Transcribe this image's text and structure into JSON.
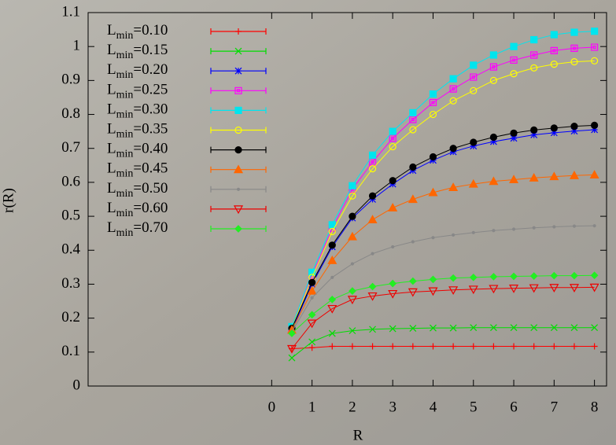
{
  "chart_data": {
    "type": "line",
    "xlabel": "R",
    "ylabel": "r(R)",
    "x": [
      0.5,
      1,
      1.5,
      2,
      2.5,
      3,
      3.5,
      4,
      4.5,
      5,
      5.5,
      6,
      6.5,
      7,
      7.5,
      8
    ],
    "xlim": [
      -4.55,
      8.3
    ],
    "ylim": [
      0,
      1.1
    ],
    "xticks": [
      0,
      1,
      2,
      3,
      4,
      5,
      6,
      7,
      8
    ],
    "yticks": [
      0,
      0.1,
      0.2,
      0.3,
      0.4,
      0.5,
      0.6,
      0.7,
      0.8,
      0.9,
      1,
      1.1
    ],
    "series": [
      {
        "name": "Lmin=0.10",
        "color": "#ff0000",
        "marker": "plus",
        "values": [
          0.11,
          0.113,
          0.117,
          0.117,
          0.117,
          0.117,
          0.117,
          0.117,
          0.117,
          0.117,
          0.117,
          0.117,
          0.117,
          0.117,
          0.117,
          0.117
        ]
      },
      {
        "name": "Lmin=0.15",
        "color": "#00dd00",
        "marker": "cross",
        "values": [
          0.083,
          0.13,
          0.155,
          0.163,
          0.167,
          0.169,
          0.17,
          0.171,
          0.171,
          0.172,
          0.172,
          0.172,
          0.172,
          0.172,
          0.172,
          0.172
        ]
      },
      {
        "name": "Lmin=0.20",
        "color": "#0000ff",
        "marker": "star",
        "values": [
          0.165,
          0.3,
          0.41,
          0.495,
          0.55,
          0.595,
          0.635,
          0.665,
          0.69,
          0.707,
          0.72,
          0.73,
          0.74,
          0.746,
          0.751,
          0.755
        ]
      },
      {
        "name": "Lmin=0.25",
        "color": "#ff00ff",
        "marker": "open-square",
        "values": [
          0.17,
          0.325,
          0.465,
          0.58,
          0.66,
          0.73,
          0.785,
          0.835,
          0.875,
          0.91,
          0.94,
          0.96,
          0.975,
          0.988,
          0.995,
          0.998
        ]
      },
      {
        "name": "Lmin=0.30",
        "color": "#00e5ee",
        "marker": "square",
        "values": [
          0.175,
          0.335,
          0.475,
          0.59,
          0.68,
          0.75,
          0.805,
          0.86,
          0.905,
          0.945,
          0.975,
          1.0,
          1.02,
          1.035,
          1.042,
          1.045
        ]
      },
      {
        "name": "Lmin=0.35",
        "color": "#ffff00",
        "marker": "open-circle",
        "values": [
          0.17,
          0.32,
          0.455,
          0.56,
          0.64,
          0.705,
          0.755,
          0.8,
          0.84,
          0.87,
          0.9,
          0.92,
          0.937,
          0.948,
          0.955,
          0.958
        ]
      },
      {
        "name": "Lmin=0.40",
        "color": "#000000",
        "marker": "circle",
        "values": [
          0.17,
          0.305,
          0.415,
          0.5,
          0.56,
          0.605,
          0.645,
          0.675,
          0.7,
          0.718,
          0.733,
          0.745,
          0.754,
          0.76,
          0.765,
          0.768
        ]
      },
      {
        "name": "Lmin=0.45",
        "color": "#ff6600",
        "marker": "triangle",
        "values": [
          0.165,
          0.28,
          0.37,
          0.44,
          0.49,
          0.525,
          0.55,
          0.57,
          0.585,
          0.595,
          0.603,
          0.608,
          0.613,
          0.617,
          0.62,
          0.622
        ]
      },
      {
        "name": "Lmin=0.50",
        "color": "#888888",
        "marker": "dot",
        "values": [
          0.16,
          0.26,
          0.32,
          0.36,
          0.39,
          0.41,
          0.425,
          0.437,
          0.445,
          0.452,
          0.458,
          0.462,
          0.466,
          0.469,
          0.471,
          0.472
        ]
      },
      {
        "name": "Lmin=0.60",
        "color": "#ee0000",
        "marker": "down-triangle",
        "values": [
          0.11,
          0.185,
          0.228,
          0.255,
          0.265,
          0.272,
          0.277,
          0.28,
          0.283,
          0.285,
          0.287,
          0.288,
          0.289,
          0.29,
          0.29,
          0.291
        ]
      },
      {
        "name": "Lmin=0.70",
        "color": "#22ee22",
        "marker": "diamond",
        "values": [
          0.155,
          0.21,
          0.255,
          0.28,
          0.293,
          0.302,
          0.309,
          0.314,
          0.318,
          0.32,
          0.322,
          0.323,
          0.324,
          0.325,
          0.325,
          0.326
        ]
      }
    ]
  }
}
